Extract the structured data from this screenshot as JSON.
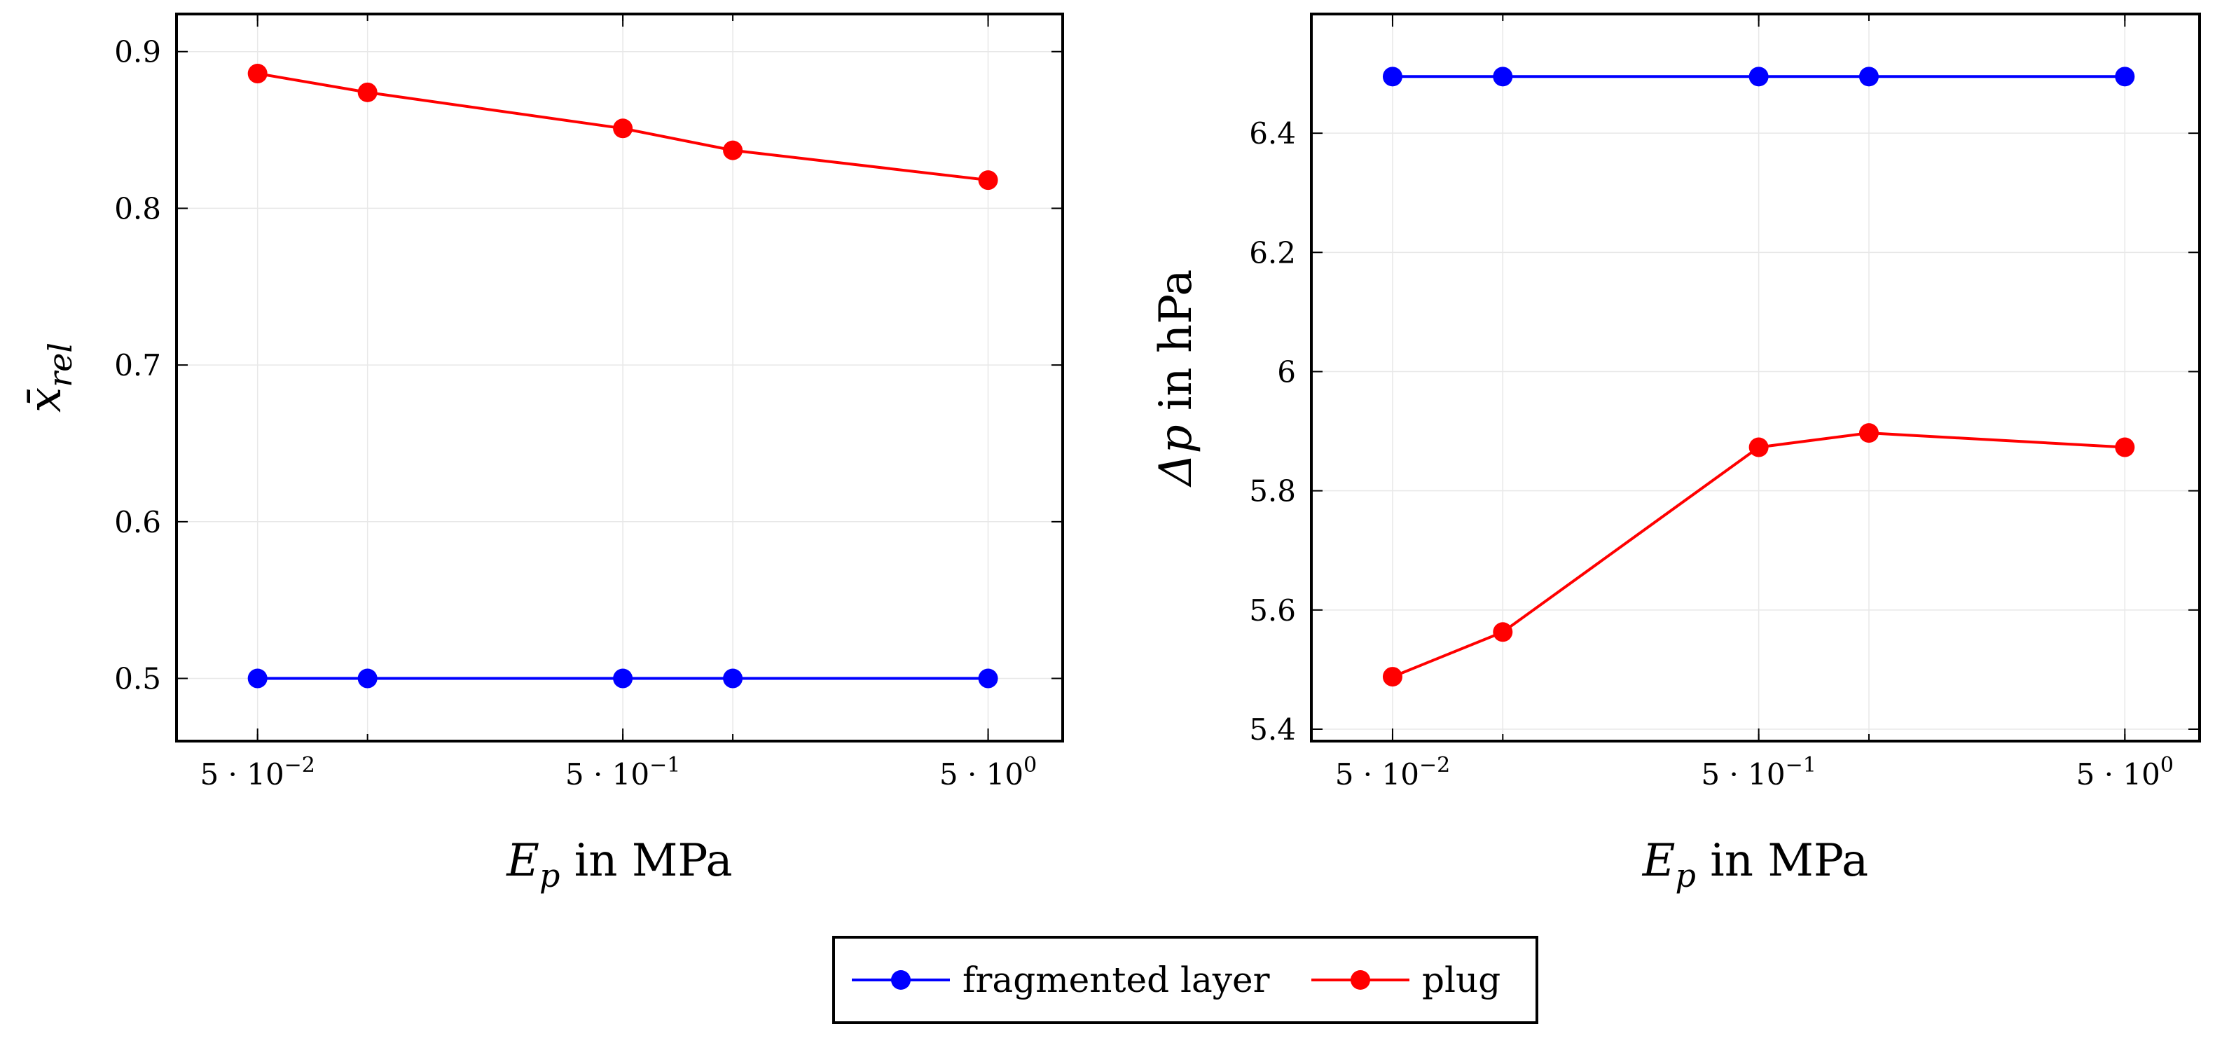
{
  "colors": {
    "fragmented": "#0000ff",
    "plug": "#ff0000"
  },
  "legend": {
    "fragmented_label": "fragmented layer",
    "plug_label": "plug"
  },
  "chart_data": [
    {
      "type": "line",
      "xscale": "log",
      "x": [
        0.05,
        0.1,
        0.5,
        1.0,
        5.0
      ],
      "xlim": [
        0.03,
        8.0
      ],
      "ylim": [
        0.46,
        0.924
      ],
      "xticks": [
        {
          "value": 0.05,
          "base": "5 · 10",
          "exp": "−2"
        },
        {
          "value": 0.5,
          "base": "5 · 10",
          "exp": "−1"
        },
        {
          "value": 5.0,
          "base": "5 · 10",
          "exp": "0"
        }
      ],
      "yticks": [
        {
          "value": 0.5,
          "label": "0.5"
        },
        {
          "value": 0.6,
          "label": "0.6"
        },
        {
          "value": 0.7,
          "label": "0.7"
        },
        {
          "value": 0.8,
          "label": "0.8"
        },
        {
          "value": 0.9,
          "label": "0.9"
        }
      ],
      "xlabel": {
        "main": "E",
        "sub": "p",
        "rest": " in MPa"
      },
      "ylabel": {
        "main": "x̄",
        "sub": "rel",
        "rest": ""
      },
      "series": [
        {
          "name": "fragmented layer",
          "key": "fragmented",
          "values": [
            0.5,
            0.5,
            0.5,
            0.5,
            0.5
          ]
        },
        {
          "name": "plug",
          "key": "plug",
          "values": [
            0.886,
            0.874,
            0.851,
            0.837,
            0.818
          ]
        }
      ]
    },
    {
      "type": "line",
      "xscale": "log",
      "x": [
        0.05,
        0.1,
        0.5,
        1.0,
        5.0
      ],
      "xlim": [
        0.03,
        8.0
      ],
      "ylim": [
        5.38,
        6.6
      ],
      "xticks": [
        {
          "value": 0.05,
          "base": "5 · 10",
          "exp": "−2"
        },
        {
          "value": 0.5,
          "base": "5 · 10",
          "exp": "−1"
        },
        {
          "value": 5.0,
          "base": "5 · 10",
          "exp": "0"
        }
      ],
      "yticks": [
        {
          "value": 5.4,
          "label": "5.4"
        },
        {
          "value": 5.6,
          "label": "5.6"
        },
        {
          "value": 5.8,
          "label": "5.8"
        },
        {
          "value": 6.0,
          "label": "6"
        },
        {
          "value": 6.2,
          "label": "6.2"
        },
        {
          "value": 6.4,
          "label": "6.4"
        }
      ],
      "xlabel": {
        "main": "E",
        "sub": "p",
        "rest": " in MPa"
      },
      "ylabel": {
        "main": "Δp",
        "sub": "",
        "rest": " in hPa"
      },
      "series": [
        {
          "name": "fragmented layer",
          "key": "fragmented",
          "values": [
            6.495,
            6.495,
            6.495,
            6.495,
            6.495
          ]
        },
        {
          "name": "plug",
          "key": "plug",
          "values": [
            5.488,
            5.563,
            5.873,
            5.897,
            5.873
          ]
        }
      ]
    }
  ]
}
